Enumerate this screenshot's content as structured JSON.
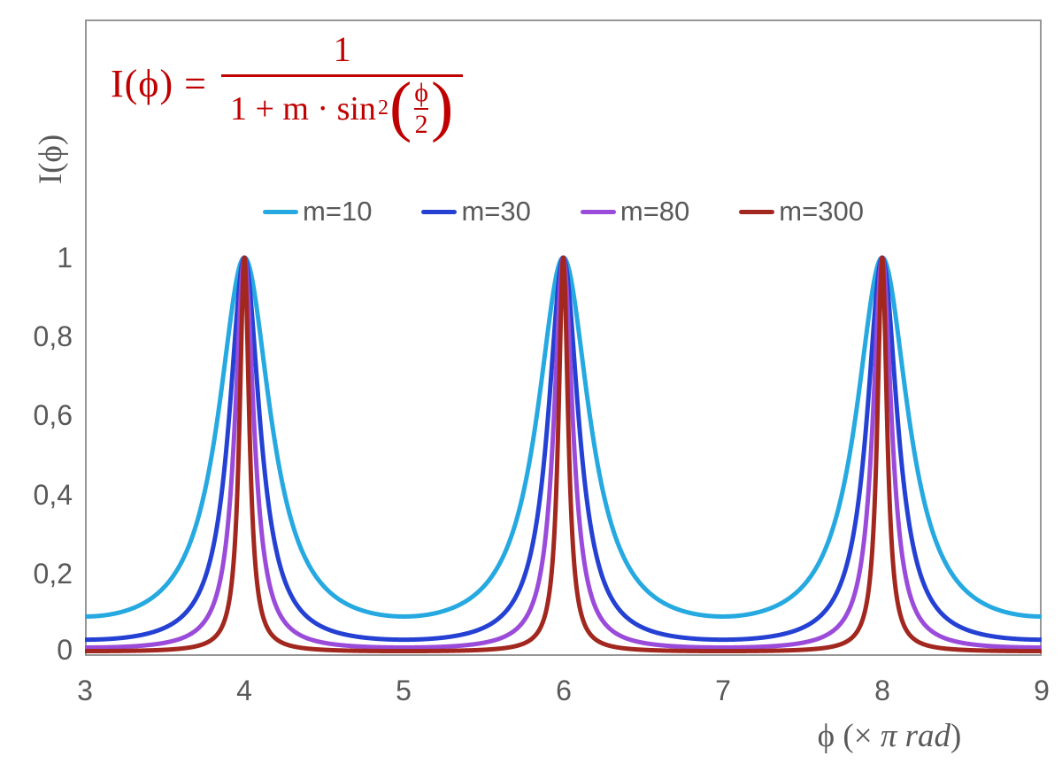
{
  "colors": {
    "formula_red": "#C00000",
    "text_gray": "#595959",
    "frame_gray": "#979797",
    "background": "#FFFFFF"
  },
  "formula": {
    "text": "I(ϕ) = 1 / (1 + m·sin²(ϕ/2))",
    "lhs": "I(ϕ) =",
    "numerator": "1",
    "denominator_prefix": "1 + m · sin",
    "denominator_sup": "2",
    "open_paren": "(",
    "inner_numerator": "ϕ",
    "inner_denominator": "2",
    "close_paren": ")"
  },
  "axes": {
    "y_title": "I(ϕ)",
    "x_title": {
      "text": "ϕ (× π rad)",
      "symbol": "ϕ ",
      "open": "(× ",
      "italic": "π rad",
      "close": ")"
    }
  },
  "chart_data": {
    "type": "line",
    "title": "",
    "xlabel": "ϕ (× π rad)",
    "ylabel": "I(ϕ)",
    "xlim": [
      3,
      9
    ],
    "ylim": [
      0,
      1
    ],
    "x_ticks": [
      "3",
      "4",
      "5",
      "6",
      "7",
      "8",
      "9"
    ],
    "y_ticks": [
      "0",
      "0,2",
      "0,4",
      "0,6",
      "0,8",
      "1"
    ],
    "grid": false,
    "legend_position": "top-center-inside",
    "function": "I(x) = 1 / (1 + m * sin^2(pi*x/2)), x = phase in units of pi rad",
    "sample_step": 0.0025,
    "series": [
      {
        "name": "m=10",
        "m": 10,
        "color": "#25A9E0",
        "peaks_x": [
          4,
          6,
          8
        ],
        "peak_y": 1,
        "min_y": 0.0909
      },
      {
        "name": "m=30",
        "m": 30,
        "color": "#2441D4",
        "peaks_x": [
          4,
          6,
          8
        ],
        "peak_y": 1,
        "min_y": 0.0323
      },
      {
        "name": "m=80",
        "m": 80,
        "color": "#9B4BD9",
        "peaks_x": [
          4,
          6,
          8
        ],
        "peak_y": 1,
        "min_y": 0.0123
      },
      {
        "name": "m=300",
        "m": 300,
        "color": "#A2271E",
        "peaks_x": [
          4,
          6,
          8
        ],
        "peak_y": 1,
        "min_y": 0.0033
      }
    ]
  }
}
